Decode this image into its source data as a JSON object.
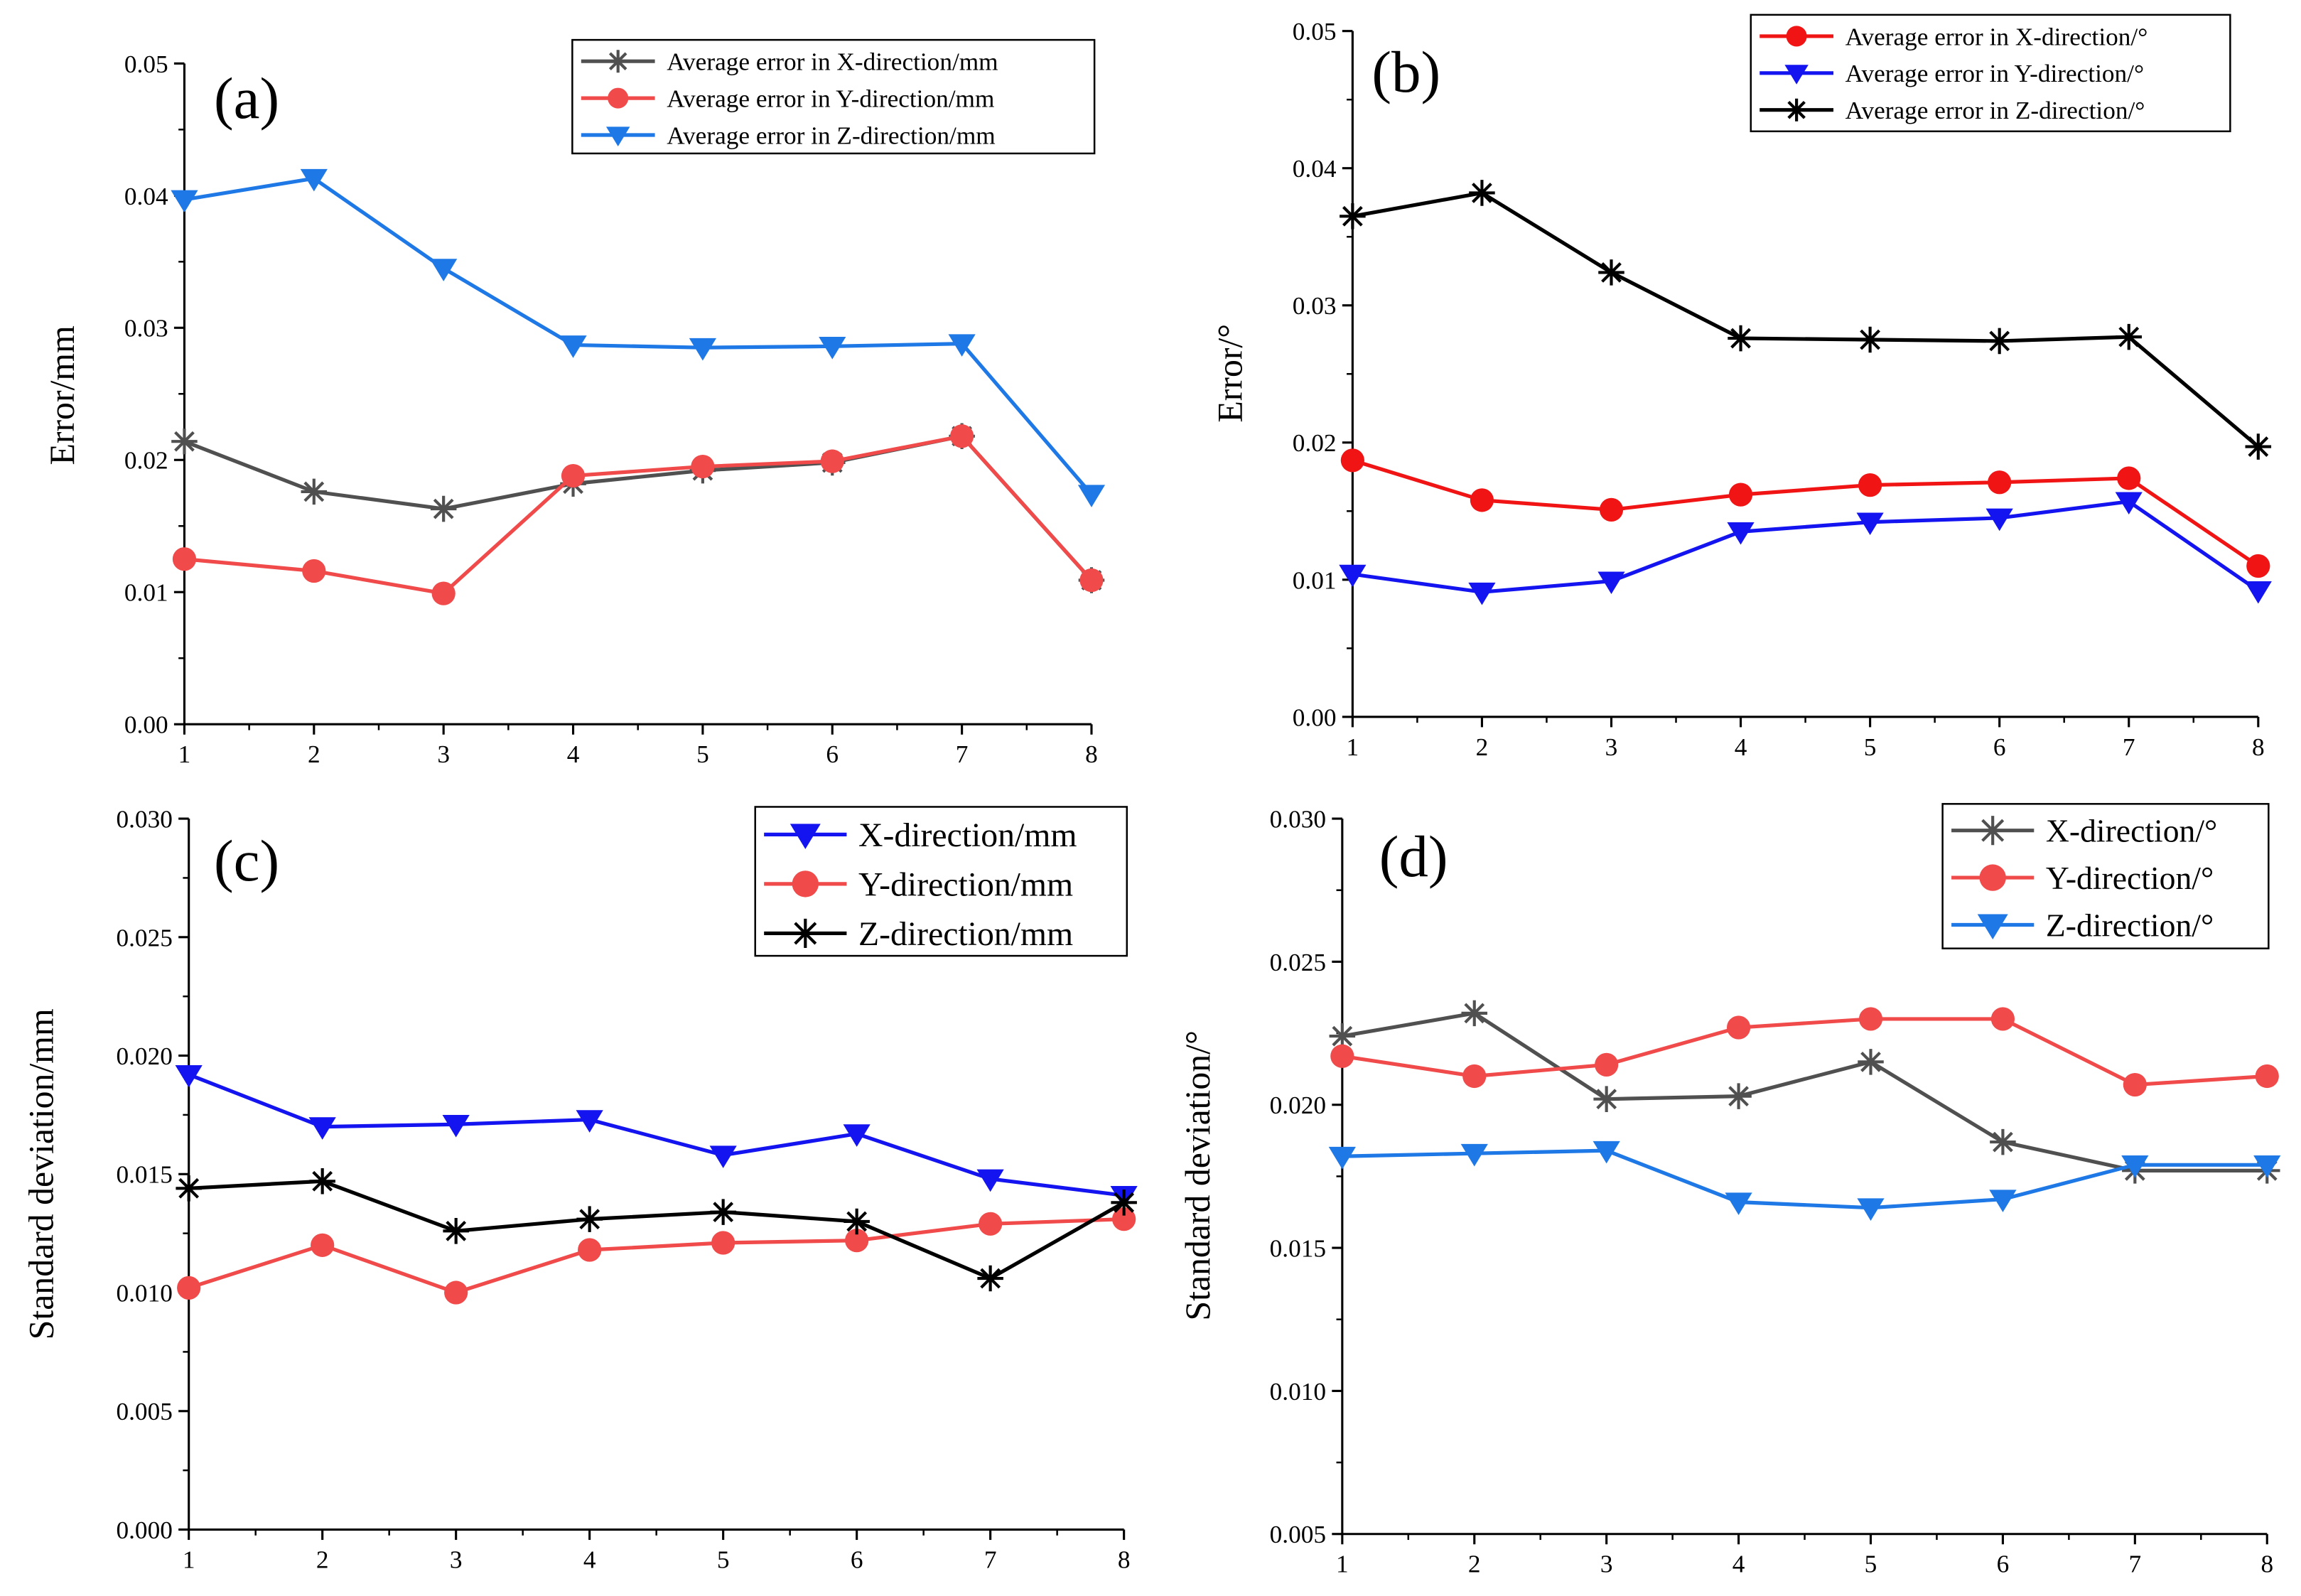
{
  "chart_data": [
    {
      "type": "line",
      "panel_label": "(a)",
      "xlabel": "",
      "ylabel": "Error/mm",
      "x": [
        1,
        2,
        3,
        4,
        5,
        6,
        7,
        8
      ],
      "xticks": [
        "1",
        "2",
        "3",
        "4",
        "5",
        "6",
        "7",
        "8"
      ],
      "ylim": [
        0,
        0.05
      ],
      "yticks": [
        "0.00",
        "0.01",
        "0.02",
        "0.03",
        "0.04",
        "0.05"
      ],
      "legend_position": "top-right",
      "series": [
        {
          "name": "Average error in X-direction/mm",
          "marker": "star",
          "color": "#505050",
          "values": [
            0.0214,
            0.0176,
            0.0163,
            0.0182,
            0.0192,
            0.0198,
            0.0218,
            0.0109
          ]
        },
        {
          "name": "Average error in Y-direction/mm",
          "marker": "circle",
          "color": "#f04a4a",
          "values": [
            0.0125,
            0.0116,
            0.0099,
            0.0188,
            0.0195,
            0.0199,
            0.0218,
            0.0109
          ]
        },
        {
          "name": "Average error in Z-direction/mm",
          "marker": "triangle-down",
          "color": "#1e78e6",
          "values": [
            0.0397,
            0.0413,
            0.0345,
            0.0287,
            0.0285,
            0.0286,
            0.0288,
            0.0174
          ]
        }
      ]
    },
    {
      "type": "line",
      "panel_label": "(b)",
      "xlabel": "",
      "ylabel": "Error/°",
      "x": [
        1,
        2,
        3,
        4,
        5,
        6,
        7,
        8
      ],
      "xticks": [
        "1",
        "2",
        "3",
        "4",
        "5",
        "6",
        "7",
        "8"
      ],
      "ylim": [
        0,
        0.05
      ],
      "yticks": [
        "0.00",
        "0.01",
        "0.02",
        "0.03",
        "0.04",
        "0.05"
      ],
      "legend_position": "top-right",
      "series": [
        {
          "name": "Average error in X-direction/°",
          "marker": "circle",
          "color": "#f01414",
          "values": [
            0.0187,
            0.0158,
            0.0151,
            0.0162,
            0.0169,
            0.0171,
            0.0174,
            0.011
          ]
        },
        {
          "name": "Average error in Y-direction/°",
          "marker": "triangle-down",
          "color": "#1414f0",
          "values": [
            0.0104,
            0.0091,
            0.0099,
            0.0135,
            0.0142,
            0.0145,
            0.0157,
            0.0092
          ]
        },
        {
          "name": "Average error in Z-direction/°",
          "marker": "star",
          "color": "#000000",
          "values": [
            0.0365,
            0.0382,
            0.0324,
            0.0276,
            0.0275,
            0.0274,
            0.0277,
            0.0197
          ]
        }
      ]
    },
    {
      "type": "line",
      "panel_label": "(c)",
      "xlabel": "",
      "ylabel": "Standard deviation/mm",
      "x": [
        1,
        2,
        3,
        4,
        5,
        6,
        7,
        8
      ],
      "xticks": [
        "1",
        "2",
        "3",
        "4",
        "5",
        "6",
        "7",
        "8"
      ],
      "ylim": [
        0,
        0.03
      ],
      "yticks": [
        "0.000",
        "0.005",
        "0.010",
        "0.015",
        "0.020",
        "0.025",
        "0.030"
      ],
      "legend_position": "top-right",
      "series": [
        {
          "name": "X-direction/mm",
          "marker": "triangle-down",
          "color": "#1414f0",
          "values": [
            0.0192,
            0.017,
            0.0171,
            0.0173,
            0.0158,
            0.0167,
            0.0148,
            0.0141
          ]
        },
        {
          "name": "Y-direction/mm",
          "marker": "circle",
          "color": "#f04a4a",
          "values": [
            0.0102,
            0.012,
            0.01,
            0.0118,
            0.0121,
            0.0122,
            0.0129,
            0.0131
          ]
        },
        {
          "name": "Z-direction/mm",
          "marker": "star",
          "color": "#000000",
          "values": [
            0.0144,
            0.0147,
            0.0126,
            0.0131,
            0.0134,
            0.013,
            0.0106,
            0.0138
          ]
        }
      ]
    },
    {
      "type": "line",
      "panel_label": "(d)",
      "xlabel": "",
      "ylabel": "Standard deviation/°",
      "x": [
        1,
        2,
        3,
        4,
        5,
        6,
        7,
        8
      ],
      "xticks": [
        "1",
        "2",
        "3",
        "4",
        "5",
        "6",
        "7",
        "8"
      ],
      "ylim": [
        0.005,
        0.03
      ],
      "yticks": [
        "0.005",
        "0.010",
        "0.015",
        "0.020",
        "0.025",
        "0.030"
      ],
      "legend_position": "top-right",
      "series": [
        {
          "name": "X-direction/°",
          "marker": "star",
          "color": "#505050",
          "values": [
            0.0224,
            0.0232,
            0.0202,
            0.0203,
            0.0215,
            0.0187,
            0.0177,
            0.0177
          ]
        },
        {
          "name": "Y-direction/°",
          "marker": "circle",
          "color": "#f04a4a",
          "values": [
            0.0217,
            0.021,
            0.0214,
            0.0227,
            0.023,
            0.023,
            0.0207,
            0.021
          ]
        },
        {
          "name": "Z-direction/°",
          "marker": "triangle-down",
          "color": "#1e78e6",
          "values": [
            0.0182,
            0.0183,
            0.0184,
            0.0166,
            0.0164,
            0.0167,
            0.0179,
            0.0179
          ]
        }
      ]
    }
  ]
}
